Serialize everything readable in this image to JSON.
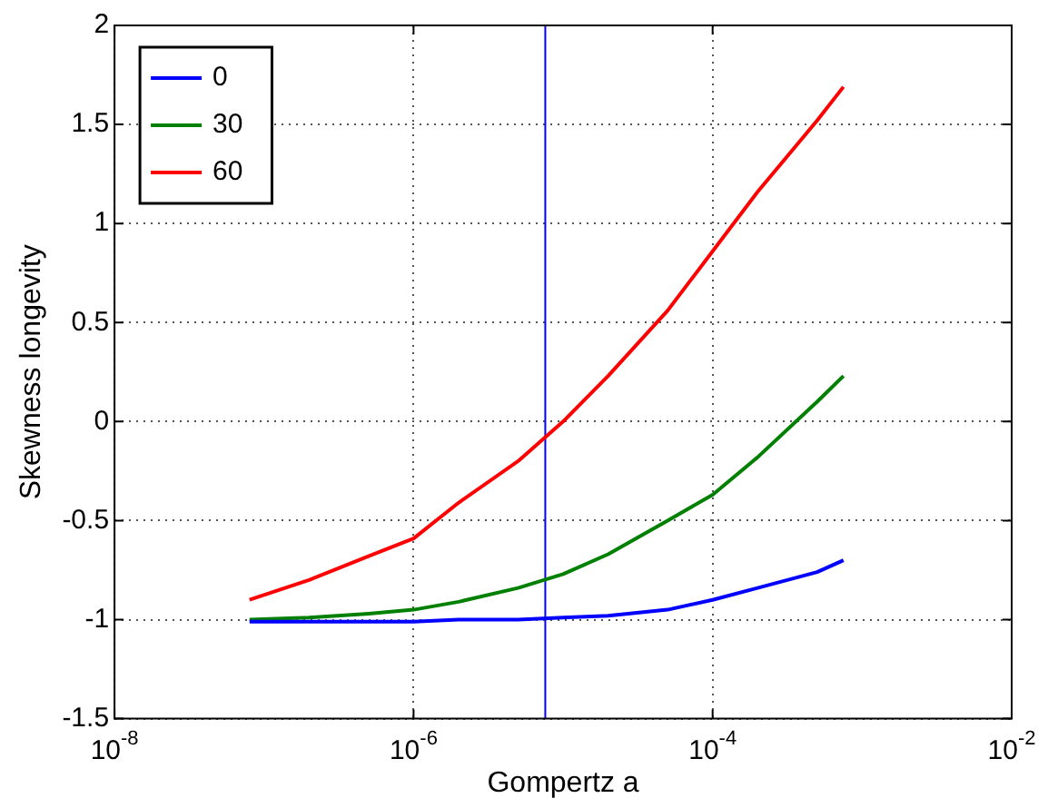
{
  "chart_data": {
    "type": "line",
    "xlabel": "Gompertz a",
    "ylabel": "Skewness longevity",
    "x": [
      8e-08,
      2e-07,
      5e-07,
      1e-06,
      2e-06,
      5e-06,
      1e-05,
      2e-05,
      5e-05,
      0.0001,
      0.0002,
      0.0005,
      0.00075
    ],
    "series": [
      {
        "name": "0",
        "color": "#0000ff",
        "values": [
          -1.01,
          -1.01,
          -1.01,
          -1.01,
          -1.0,
          -1.0,
          -0.99,
          -0.98,
          -0.95,
          -0.9,
          -0.84,
          -0.76,
          -0.7
        ]
      },
      {
        "name": "30",
        "color": "#008000",
        "values": [
          -1.0,
          -0.99,
          -0.97,
          -0.95,
          -0.91,
          -0.84,
          -0.77,
          -0.67,
          -0.5,
          -0.37,
          -0.18,
          0.1,
          0.23
        ]
      },
      {
        "name": "60",
        "color": "#ff0000",
        "values": [
          -0.9,
          -0.8,
          -0.68,
          -0.59,
          -0.41,
          -0.2,
          0.0,
          0.23,
          0.56,
          0.86,
          1.16,
          1.52,
          1.69
        ]
      }
    ],
    "xlim": [
      1e-08,
      0.01
    ],
    "xticks": [
      {
        "value": 1e-08,
        "label": "10$^{-8}$"
      },
      {
        "value": 1e-06,
        "label": "10$^{-6}$"
      },
      {
        "value": 0.0001,
        "label": "10$^{-4}$"
      },
      {
        "value": 0.01,
        "label": "10$^{-2}$"
      }
    ],
    "ylim": [
      -1.5,
      2
    ],
    "yticks": [
      -1.5,
      -1,
      -0.5,
      0,
      0.5,
      1,
      1.5,
      2
    ],
    "log": "x",
    "grid": true,
    "legend": "top left",
    "marker": "none",
    "line_style": "solid",
    "ref_lines": [
      {
        "axis": "x",
        "value": 7.6e-06,
        "color": "#0000ff"
      }
    ]
  }
}
